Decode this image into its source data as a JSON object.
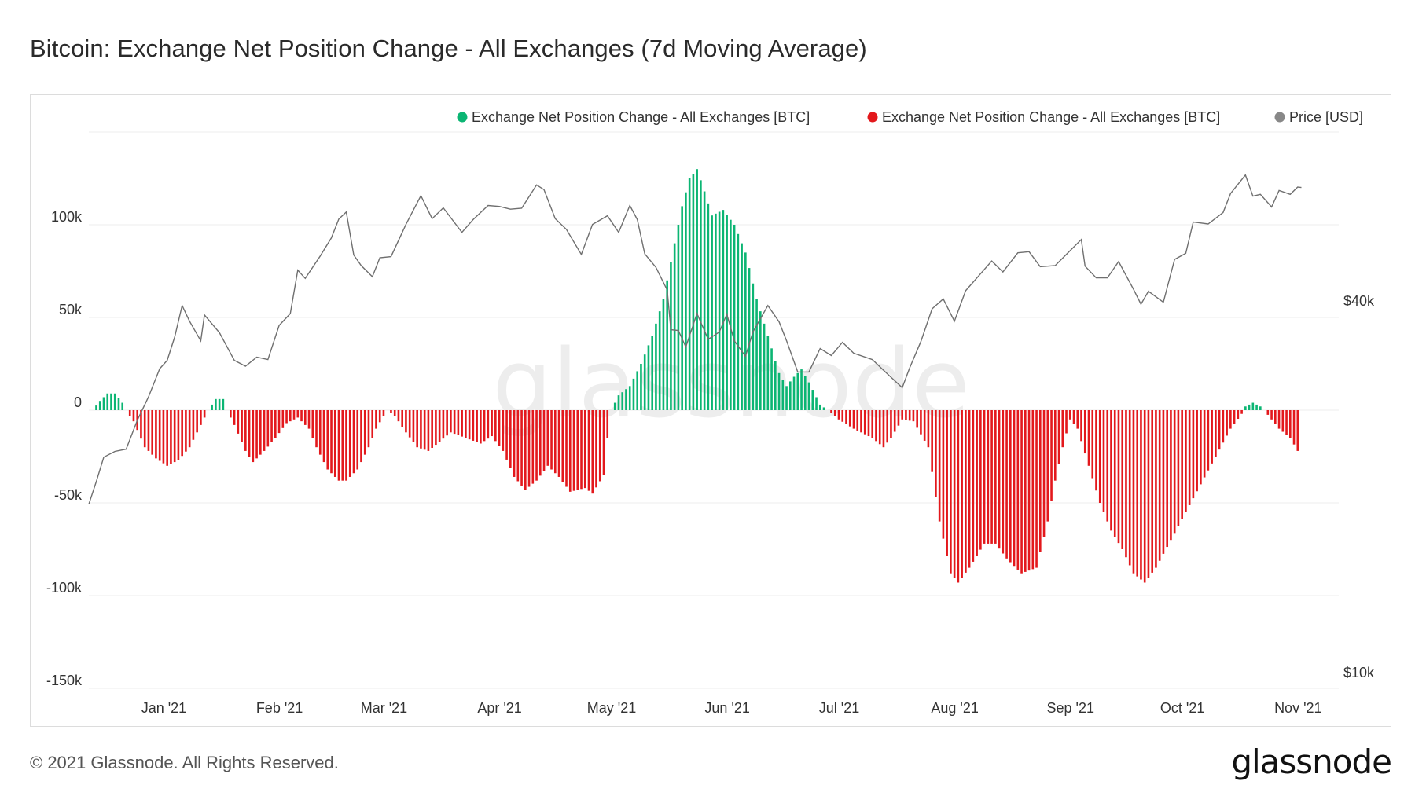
{
  "page": {
    "title": "Bitcoin: Exchange Net Position Change - All Exchanges (7d Moving Average)",
    "copyright": "© 2021 Glassnode. All Rights Reserved.",
    "logo_text": "glassnode",
    "watermark_text": "glassnode"
  },
  "chart_data": {
    "type": "bar",
    "title": "Bitcoin: Exchange Net Position Change - All Exchanges (7d Moving Average)",
    "legend_position": "top-right",
    "grid": true,
    "legend": [
      {
        "label": "Exchange Net Position Change - All Exchanges [BTC]",
        "color": "#0bb573"
      },
      {
        "label": "Exchange Net Position Change - All Exchanges [BTC]",
        "color": "#e3181c"
      },
      {
        "label": "Price [USD]",
        "color": "#888888"
      }
    ],
    "y_left": {
      "ticks": [
        -150000,
        -100000,
        -50000,
        0,
        50000,
        100000
      ],
      "tick_labels": [
        "-150k",
        "-100k",
        "-50k",
        "0",
        "50k",
        "100k"
      ],
      "range": [
        -150000,
        150000
      ]
    },
    "y_right": {
      "scale": "log",
      "ticks": [
        10000,
        40000
      ],
      "tick_labels": [
        "$10k",
        "$40k"
      ],
      "range": [
        10000,
        80000
      ]
    },
    "x_ticks": [
      {
        "date": "2021-01-01",
        "label": "Jan '21"
      },
      {
        "date": "2021-02-01",
        "label": "Feb '21"
      },
      {
        "date": "2021-03-01",
        "label": "Mar '21"
      },
      {
        "date": "2021-04-01",
        "label": "Apr '21"
      },
      {
        "date": "2021-05-01",
        "label": "May '21"
      },
      {
        "date": "2021-06-01",
        "label": "Jun '21"
      },
      {
        "date": "2021-07-01",
        "label": "Jul '21"
      },
      {
        "date": "2021-08-01",
        "label": "Aug '21"
      },
      {
        "date": "2021-09-01",
        "label": "Sep '21"
      },
      {
        "date": "2021-10-01",
        "label": "Oct '21"
      },
      {
        "date": "2021-11-01",
        "label": "Nov '21"
      }
    ],
    "x_range": [
      "2020-12-14",
      "2021-11-14"
    ],
    "netflow_anchors": [
      [
        "2020-12-15",
        0
      ],
      [
        "2020-12-17",
        5000
      ],
      [
        "2020-12-19",
        9000
      ],
      [
        "2020-12-21",
        9000
      ],
      [
        "2020-12-23",
        4000
      ],
      [
        "2020-12-24",
        0
      ],
      [
        "2020-12-26",
        -6000
      ],
      [
        "2020-12-29",
        -20000
      ],
      [
        "2021-01-01",
        -26000
      ],
      [
        "2021-01-04",
        -30000
      ],
      [
        "2021-01-07",
        -27000
      ],
      [
        "2021-01-10",
        -20000
      ],
      [
        "2021-01-13",
        -8000
      ],
      [
        "2021-01-15",
        0
      ],
      [
        "2021-01-17",
        6000
      ],
      [
        "2021-01-19",
        6000
      ],
      [
        "2021-01-20",
        0
      ],
      [
        "2021-01-22",
        -8000
      ],
      [
        "2021-01-25",
        -22000
      ],
      [
        "2021-01-27",
        -28000
      ],
      [
        "2021-01-30",
        -22000
      ],
      [
        "2021-02-02",
        -15000
      ],
      [
        "2021-02-05",
        -7000
      ],
      [
        "2021-02-08",
        -4000
      ],
      [
        "2021-02-11",
        -10000
      ],
      [
        "2021-02-13",
        -20000
      ],
      [
        "2021-02-16",
        -32000
      ],
      [
        "2021-02-19",
        -38000
      ],
      [
        "2021-02-21",
        -38000
      ],
      [
        "2021-02-24",
        -32000
      ],
      [
        "2021-02-27",
        -20000
      ],
      [
        "2021-03-01",
        -10000
      ],
      [
        "2021-03-03",
        -3000
      ],
      [
        "2021-03-04",
        0
      ],
      [
        "2021-03-06",
        -3000
      ],
      [
        "2021-03-09",
        -12000
      ],
      [
        "2021-03-12",
        -20000
      ],
      [
        "2021-03-15",
        -22000
      ],
      [
        "2021-03-18",
        -17000
      ],
      [
        "2021-03-21",
        -12000
      ],
      [
        "2021-03-25",
        -15000
      ],
      [
        "2021-03-29",
        -18000
      ],
      [
        "2021-04-01",
        -14000
      ],
      [
        "2021-04-04",
        -22000
      ],
      [
        "2021-04-07",
        -36000
      ],
      [
        "2021-04-10",
        -43000
      ],
      [
        "2021-04-13",
        -38000
      ],
      [
        "2021-04-16",
        -30000
      ],
      [
        "2021-04-19",
        -36000
      ],
      [
        "2021-04-22",
        -44000
      ],
      [
        "2021-04-26",
        -42000
      ],
      [
        "2021-04-28",
        -45000
      ],
      [
        "2021-05-01",
        -35000
      ],
      [
        "2021-05-02",
        -15000
      ],
      [
        "2021-05-03",
        0
      ],
      [
        "2021-05-05",
        8000
      ],
      [
        "2021-05-08",
        13000
      ],
      [
        "2021-05-11",
        25000
      ],
      [
        "2021-05-14",
        40000
      ],
      [
        "2021-05-17",
        60000
      ],
      [
        "2021-05-20",
        90000
      ],
      [
        "2021-05-22",
        110000
      ],
      [
        "2021-05-24",
        125000
      ],
      [
        "2021-05-26",
        130000
      ],
      [
        "2021-05-28",
        118000
      ],
      [
        "2021-05-30",
        105000
      ],
      [
        "2021-06-02",
        108000
      ],
      [
        "2021-06-05",
        100000
      ],
      [
        "2021-06-08",
        85000
      ],
      [
        "2021-06-11",
        60000
      ],
      [
        "2021-06-14",
        40000
      ],
      [
        "2021-06-17",
        20000
      ],
      [
        "2021-06-19",
        13000
      ],
      [
        "2021-06-21",
        18000
      ],
      [
        "2021-06-23",
        22000
      ],
      [
        "2021-06-25",
        15000
      ],
      [
        "2021-06-28",
        3000
      ],
      [
        "2021-06-30",
        0
      ],
      [
        "2021-07-03",
        -5000
      ],
      [
        "2021-07-07",
        -10000
      ],
      [
        "2021-07-12",
        -15000
      ],
      [
        "2021-07-15",
        -20000
      ],
      [
        "2021-07-17",
        -15000
      ],
      [
        "2021-07-20",
        -5000
      ],
      [
        "2021-07-23",
        -6000
      ],
      [
        "2021-07-27",
        -20000
      ],
      [
        "2021-07-30",
        -60000
      ],
      [
        "2021-08-02",
        -88000
      ],
      [
        "2021-08-04",
        -93000
      ],
      [
        "2021-08-07",
        -85000
      ],
      [
        "2021-08-11",
        -72000
      ],
      [
        "2021-08-14",
        -72000
      ],
      [
        "2021-08-17",
        -80000
      ],
      [
        "2021-08-21",
        -88000
      ],
      [
        "2021-08-25",
        -85000
      ],
      [
        "2021-08-28",
        -60000
      ],
      [
        "2021-08-30",
        -38000
      ],
      [
        "2021-09-01",
        -20000
      ],
      [
        "2021-09-03",
        -5000
      ],
      [
        "2021-09-05",
        -10000
      ],
      [
        "2021-09-08",
        -30000
      ],
      [
        "2021-09-11",
        -50000
      ],
      [
        "2021-09-14",
        -65000
      ],
      [
        "2021-09-17",
        -75000
      ],
      [
        "2021-09-20",
        -88000
      ],
      [
        "2021-09-23",
        -93000
      ],
      [
        "2021-09-26",
        -85000
      ],
      [
        "2021-09-30",
        -70000
      ],
      [
        "2021-10-04",
        -55000
      ],
      [
        "2021-10-08",
        -40000
      ],
      [
        "2021-10-12",
        -25000
      ],
      [
        "2021-10-16",
        -10000
      ],
      [
        "2021-10-19",
        -2000
      ],
      [
        "2021-10-20",
        2000
      ],
      [
        "2021-10-22",
        4000
      ],
      [
        "2021-10-24",
        2000
      ],
      [
        "2021-10-25",
        0
      ],
      [
        "2021-10-27",
        -5000
      ],
      [
        "2021-10-29",
        -10000
      ],
      [
        "2021-11-01",
        -15000
      ],
      [
        "2021-11-03",
        -22000
      ]
    ],
    "price_anchors": [
      [
        "2020-12-14",
        19300
      ],
      [
        "2020-12-16",
        21000
      ],
      [
        "2020-12-18",
        23000
      ],
      [
        "2020-12-21",
        23500
      ],
      [
        "2020-12-24",
        23700
      ],
      [
        "2020-12-27",
        26400
      ],
      [
        "2020-12-30",
        28800
      ],
      [
        "2021-01-02",
        32000
      ],
      [
        "2021-01-04",
        33000
      ],
      [
        "2021-01-06",
        36000
      ],
      [
        "2021-01-08",
        40500
      ],
      [
        "2021-01-10",
        38200
      ],
      [
        "2021-01-13",
        35500
      ],
      [
        "2021-01-14",
        39100
      ],
      [
        "2021-01-18",
        36600
      ],
      [
        "2021-01-22",
        33000
      ],
      [
        "2021-01-25",
        32300
      ],
      [
        "2021-01-28",
        33400
      ],
      [
        "2021-01-31",
        33100
      ],
      [
        "2021-02-03",
        37600
      ],
      [
        "2021-02-06",
        39300
      ],
      [
        "2021-02-08",
        46200
      ],
      [
        "2021-02-10",
        44800
      ],
      [
        "2021-02-14",
        48700
      ],
      [
        "2021-02-17",
        52100
      ],
      [
        "2021-02-19",
        55900
      ],
      [
        "2021-02-21",
        57400
      ],
      [
        "2021-02-23",
        48900
      ],
      [
        "2021-02-25",
        47000
      ],
      [
        "2021-02-28",
        45100
      ],
      [
        "2021-03-02",
        48400
      ],
      [
        "2021-03-05",
        48600
      ],
      [
        "2021-03-09",
        54800
      ],
      [
        "2021-03-13",
        61000
      ],
      [
        "2021-03-16",
        56000
      ],
      [
        "2021-03-19",
        58300
      ],
      [
        "2021-03-24",
        53200
      ],
      [
        "2021-03-27",
        55800
      ],
      [
        "2021-03-31",
        58800
      ],
      [
        "2021-04-03",
        58600
      ],
      [
        "2021-04-06",
        58000
      ],
      [
        "2021-04-09",
        58200
      ],
      [
        "2021-04-13",
        63500
      ],
      [
        "2021-04-15",
        62400
      ],
      [
        "2021-04-18",
        56000
      ],
      [
        "2021-04-21",
        53800
      ],
      [
        "2021-04-25",
        49000
      ],
      [
        "2021-04-28",
        54800
      ],
      [
        "2021-05-02",
        56600
      ],
      [
        "2021-05-05",
        53200
      ],
      [
        "2021-05-08",
        58800
      ],
      [
        "2021-05-10",
        55800
      ],
      [
        "2021-05-12",
        49100
      ],
      [
        "2021-05-15",
        46700
      ],
      [
        "2021-05-18",
        42900
      ],
      [
        "2021-05-19",
        37000
      ],
      [
        "2021-05-21",
        36900
      ],
      [
        "2021-05-23",
        34700
      ],
      [
        "2021-05-26",
        39300
      ],
      [
        "2021-05-29",
        35700
      ],
      [
        "2021-06-01",
        36700
      ],
      [
        "2021-06-03",
        39200
      ],
      [
        "2021-06-05",
        35500
      ],
      [
        "2021-06-08",
        33500
      ],
      [
        "2021-06-10",
        36700
      ],
      [
        "2021-06-14",
        40500
      ],
      [
        "2021-06-17",
        38100
      ],
      [
        "2021-06-19",
        35500
      ],
      [
        "2021-06-22",
        31600
      ],
      [
        "2021-06-25",
        31600
      ],
      [
        "2021-06-28",
        34500
      ],
      [
        "2021-07-01",
        33600
      ],
      [
        "2021-07-04",
        35300
      ],
      [
        "2021-07-07",
        33900
      ],
      [
        "2021-07-12",
        33100
      ],
      [
        "2021-07-15",
        31800
      ],
      [
        "2021-07-20",
        29800
      ],
      [
        "2021-07-22",
        32100
      ],
      [
        "2021-07-25",
        35400
      ],
      [
        "2021-07-28",
        40000
      ],
      [
        "2021-07-31",
        41500
      ],
      [
        "2021-08-03",
        38200
      ],
      [
        "2021-08-06",
        42800
      ],
      [
        "2021-08-10",
        45600
      ],
      [
        "2021-08-13",
        47800
      ],
      [
        "2021-08-16",
        45900
      ],
      [
        "2021-08-20",
        49300
      ],
      [
        "2021-08-23",
        49500
      ],
      [
        "2021-08-26",
        46800
      ],
      [
        "2021-08-30",
        47000
      ],
      [
        "2021-09-02",
        49000
      ],
      [
        "2021-09-06",
        51800
      ],
      [
        "2021-09-07",
        46900
      ],
      [
        "2021-09-10",
        44900
      ],
      [
        "2021-09-13",
        44900
      ],
      [
        "2021-09-16",
        47700
      ],
      [
        "2021-09-20",
        43000
      ],
      [
        "2021-09-22",
        40700
      ],
      [
        "2021-09-24",
        42700
      ],
      [
        "2021-09-28",
        41000
      ],
      [
        "2021-10-01",
        48100
      ],
      [
        "2021-10-04",
        49200
      ],
      [
        "2021-10-06",
        55300
      ],
      [
        "2021-10-10",
        54900
      ],
      [
        "2021-10-14",
        57300
      ],
      [
        "2021-10-16",
        61500
      ],
      [
        "2021-10-20",
        65900
      ],
      [
        "2021-10-22",
        60900
      ],
      [
        "2021-10-24",
        61300
      ],
      [
        "2021-10-27",
        58500
      ],
      [
        "2021-10-29",
        62200
      ],
      [
        "2021-11-01",
        61300
      ],
      [
        "2021-11-03",
        63000
      ],
      [
        "2021-11-04",
        62900
      ]
    ]
  }
}
